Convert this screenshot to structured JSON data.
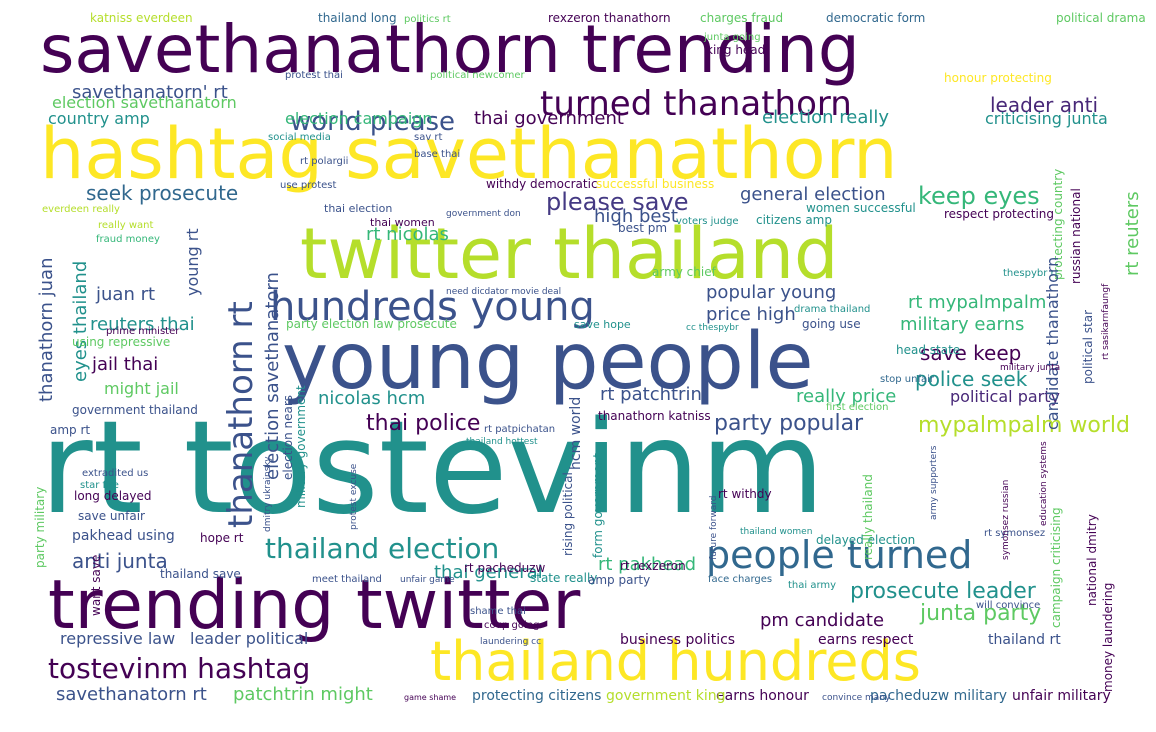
{
  "palette": {
    "dark_purple": "#440154",
    "indigo": "#3b528b",
    "teal": "#21918c",
    "green": "#5ec962",
    "lime": "#b5de2b",
    "yellow": "#fde725",
    "background": "#ffffff"
  },
  "words": [
    {
      "text": "rt tostevinm",
      "color": "#21918c"
    },
    {
      "text": "young people",
      "color": "#3b528b"
    },
    {
      "text": "savethanathorn trending",
      "color": "#440154"
    },
    {
      "text": "hashtag savethanathorn",
      "color": "#fde725"
    },
    {
      "text": "twitter thailand",
      "color": "#b5de2b"
    },
    {
      "text": "trending twitter",
      "color": "#440154"
    },
    {
      "text": "thailand hundreds",
      "color": "#fde725"
    },
    {
      "text": "hundreds young",
      "color": "#3b528b"
    },
    {
      "text": "people turned",
      "color": "#31688e"
    },
    {
      "text": "turned thanathorn",
      "color": "#440154"
    },
    {
      "text": "thanathorn rt",
      "color": "#3b528b"
    },
    {
      "text": "tostevinm hashtag",
      "color": "#440154"
    },
    {
      "text": "thailand election",
      "color": "#21918c"
    },
    {
      "text": "world please",
      "color": "#3b528b"
    },
    {
      "text": "please save",
      "color": "#443983"
    },
    {
      "text": "keep eyes",
      "color": "#35b779"
    },
    {
      "text": "savethanatorn' rt",
      "color": "#3b528b"
    },
    {
      "text": "election savethanatorn",
      "color": "#5ec962"
    },
    {
      "text": "thai government",
      "color": "#440154"
    },
    {
      "text": "leader anti",
      "color": "#482878"
    },
    {
      "text": "seek prosecute",
      "color": "#31688e"
    },
    {
      "text": "election campaign",
      "color": "#35b779"
    },
    {
      "text": "election really",
      "color": "#21918c"
    },
    {
      "text": "country amp",
      "color": "#21918c"
    },
    {
      "text": "criticising junta",
      "color": "#21918c"
    },
    {
      "text": "rt nicolas",
      "color": "#35b779"
    },
    {
      "text": "general election",
      "color": "#3b528b"
    },
    {
      "text": "high best",
      "color": "#3b528b"
    },
    {
      "text": "popular young",
      "color": "#3b528b"
    },
    {
      "text": "rt mypalmpalm",
      "color": "#35b779"
    },
    {
      "text": "military earns",
      "color": "#35b779"
    },
    {
      "text": "save keep",
      "color": "#440154"
    },
    {
      "text": "police seek",
      "color": "#21918c"
    },
    {
      "text": "political party",
      "color": "#482878"
    },
    {
      "text": "mypalmpalm world",
      "color": "#b5de2b"
    },
    {
      "text": "party popular",
      "color": "#3b528b"
    },
    {
      "text": "thai police",
      "color": "#440154"
    },
    {
      "text": "nicolas hcm",
      "color": "#21918c"
    },
    {
      "text": "rt patchtrin",
      "color": "#3b528b"
    },
    {
      "text": "really price",
      "color": "#35b779"
    },
    {
      "text": "price high",
      "color": "#3b528b"
    },
    {
      "text": "eyes thailand",
      "color": "#21918c"
    },
    {
      "text": "juan rt",
      "color": "#3b528b"
    },
    {
      "text": "reuters thai",
      "color": "#21918c"
    },
    {
      "text": "jail thai",
      "color": "#440154"
    },
    {
      "text": "might jail",
      "color": "#5ec962"
    },
    {
      "text": "anti junta",
      "color": "#3b528b"
    },
    {
      "text": "thai general",
      "color": "#21918c"
    },
    {
      "text": "rt pakhead",
      "color": "#35b779"
    },
    {
      "text": "prosecute leader",
      "color": "#21918c"
    },
    {
      "text": "junta party",
      "color": "#5ec962"
    },
    {
      "text": "pm candidate",
      "color": "#440154"
    },
    {
      "text": "savethanatorn rt",
      "color": "#3b528b"
    },
    {
      "text": "patchtrin might",
      "color": "#5ec962"
    },
    {
      "text": "repressive law",
      "color": "#3b528b"
    },
    {
      "text": "leader political",
      "color": "#3b528b"
    },
    {
      "text": "business politics",
      "color": "#440154"
    },
    {
      "text": "earns respect",
      "color": "#440154"
    },
    {
      "text": "thailand rt",
      "color": "#3b528b"
    },
    {
      "text": "earns honour",
      "color": "#440154"
    },
    {
      "text": "protecting citizens",
      "color": "#31688e"
    },
    {
      "text": "government king",
      "color": "#b5de2b"
    },
    {
      "text": "pacheduzw military",
      "color": "#31688e"
    },
    {
      "text": "unfair military",
      "color": "#440154"
    },
    {
      "text": "katniss everdeen",
      "color": "#b5de2b"
    },
    {
      "text": "thailand long",
      "color": "#31688e"
    },
    {
      "text": "politics rt",
      "color": "#5ec962"
    },
    {
      "text": "rexzeron thanathorn",
      "color": "#440154"
    },
    {
      "text": "charges fraud",
      "color": "#5ec962"
    },
    {
      "text": "democratic form",
      "color": "#31688e"
    },
    {
      "text": "political drama",
      "color": "#5ec962"
    },
    {
      "text": "king head",
      "color": "#440154"
    },
    {
      "text": "junta going",
      "color": "#5ec962"
    },
    {
      "text": "honour protecting",
      "color": "#fde725"
    },
    {
      "text": "protest thai",
      "color": "#3b528b"
    },
    {
      "text": "political newcomer",
      "color": "#5ec962"
    },
    {
      "text": "social media",
      "color": "#21918c"
    },
    {
      "text": "base thai",
      "color": "#3b528b"
    },
    {
      "text": "sav rt",
      "color": "#3b528b"
    },
    {
      "text": "rt polargii",
      "color": "#3b528b"
    },
    {
      "text": "use protest",
      "color": "#3b528b"
    },
    {
      "text": "withdy democratic",
      "color": "#440154"
    },
    {
      "text": "successful business",
      "color": "#fde725"
    },
    {
      "text": "everdeen really",
      "color": "#b5de2b"
    },
    {
      "text": "really want",
      "color": "#b5de2b"
    },
    {
      "text": "fraud money",
      "color": "#35b779"
    },
    {
      "text": "thai election",
      "color": "#3b528b"
    },
    {
      "text": "women successful",
      "color": "#21918c"
    },
    {
      "text": "respect protecting",
      "color": "#440154"
    },
    {
      "text": "government don",
      "color": "#3b528b"
    },
    {
      "text": "thai women",
      "color": "#440154"
    },
    {
      "text": "voters judge",
      "color": "#21918c"
    },
    {
      "text": "best pm",
      "color": "#3b528b"
    },
    {
      "text": "citizens amp",
      "color": "#21918c"
    },
    {
      "text": "army chief",
      "color": "#5ec962"
    },
    {
      "text": "need dicdator movie deal",
      "color": "#3b528b"
    },
    {
      "text": "thespybr rt",
      "color": "#21918c"
    },
    {
      "text": "party election law prosecute",
      "color": "#5ec962"
    },
    {
      "text": "save hope",
      "color": "#21918c"
    },
    {
      "text": "cc thespybr",
      "color": "#21918c"
    },
    {
      "text": "drama thailand",
      "color": "#21918c"
    },
    {
      "text": "going use",
      "color": "#3b528b"
    },
    {
      "text": "head state",
      "color": "#21918c"
    },
    {
      "text": "stop unfair",
      "color": "#31688e"
    },
    {
      "text": "first election",
      "color": "#5ec962"
    },
    {
      "text": "thanathorn katniss",
      "color": "#440154"
    },
    {
      "text": "rt patpichatan",
      "color": "#3b528b"
    },
    {
      "text": "thailand hottest",
      "color": "#21918c"
    },
    {
      "text": "prime minister",
      "color": "#440154"
    },
    {
      "text": "using repressive",
      "color": "#5ec962"
    },
    {
      "text": "government thailand",
      "color": "#3b528b"
    },
    {
      "text": "amp rt",
      "color": "#3b528b"
    },
    {
      "text": "extradited us",
      "color": "#3b528b"
    },
    {
      "text": "star fire",
      "color": "#21918c"
    },
    {
      "text": "long delayed",
      "color": "#440154"
    },
    {
      "text": "save unfair",
      "color": "#3b528b"
    },
    {
      "text": "pakhead using",
      "color": "#3b528b"
    },
    {
      "text": "hope rt",
      "color": "#440154"
    },
    {
      "text": "thailand save",
      "color": "#3b528b"
    },
    {
      "text": "meet thailand",
      "color": "#3b528b"
    },
    {
      "text": "unfair game",
      "color": "#3b528b"
    },
    {
      "text": "rt pacheduzw",
      "color": "#440154"
    },
    {
      "text": "state really",
      "color": "#21918c"
    },
    {
      "text": "rt rexzeron",
      "color": "#440154"
    },
    {
      "text": "amp party",
      "color": "#3b528b"
    },
    {
      "text": "face charges",
      "color": "#31688e"
    },
    {
      "text": "delayed election",
      "color": "#21918c"
    },
    {
      "text": "thai army",
      "color": "#21918c"
    },
    {
      "text": "rt symonsez",
      "color": "#3b528b"
    },
    {
      "text": "rt withdy",
      "color": "#440154"
    },
    {
      "text": "thailand women",
      "color": "#21918c"
    },
    {
      "text": "shame thai",
      "color": "#3b528b"
    },
    {
      "text": "coup going",
      "color": "#440154"
    },
    {
      "text": "laundering cc",
      "color": "#3b528b"
    },
    {
      "text": "game shame",
      "color": "#440154"
    },
    {
      "text": "convince many",
      "color": "#3b528b"
    },
    {
      "text": "will convince",
      "color": "#3b528b"
    },
    {
      "text": "money laundering",
      "color": "#440154"
    },
    {
      "text": "national dmitry",
      "color": "#440154"
    },
    {
      "text": "russian national",
      "color": "#440154"
    },
    {
      "text": "protecting country",
      "color": "#5ec962"
    },
    {
      "text": "candidate thanathorn",
      "color": "#3b528b"
    },
    {
      "text": "rt reuters",
      "color": "#5ec962"
    },
    {
      "text": "political star",
      "color": "#3b528b"
    },
    {
      "text": "rt sasikarnfaungf",
      "color": "#440154"
    },
    {
      "text": "military junta",
      "color": "#440154"
    },
    {
      "text": "young rt",
      "color": "#3b528b"
    },
    {
      "text": "election savethanatorn",
      "color": "#3b528b"
    },
    {
      "text": "thanathorn juan",
      "color": "#3b528b"
    },
    {
      "text": "military government",
      "color": "#21918c"
    },
    {
      "text": "election nears",
      "color": "#3b528b"
    },
    {
      "text": "hcm world",
      "color": "#3b528b"
    },
    {
      "text": "party military",
      "color": "#5ec962"
    },
    {
      "text": "rising political",
      "color": "#3b528b"
    },
    {
      "text": "form government",
      "color": "#21918c"
    },
    {
      "text": "campaign criticising",
      "color": "#5ec962"
    },
    {
      "text": "really thailand",
      "color": "#5ec962"
    },
    {
      "text": "future forward",
      "color": "#3b528b"
    },
    {
      "text": "protest excuse",
      "color": "#3b528b"
    },
    {
      "text": "dmitry ukrainsky",
      "color": "#3b528b"
    },
    {
      "text": "education systems",
      "color": "#440154"
    },
    {
      "text": "army supporters",
      "color": "#3b528b"
    },
    {
      "text": "symonsez russian",
      "color": "#440154"
    },
    {
      "text": "want save",
      "color": "#440154"
    }
  ]
}
